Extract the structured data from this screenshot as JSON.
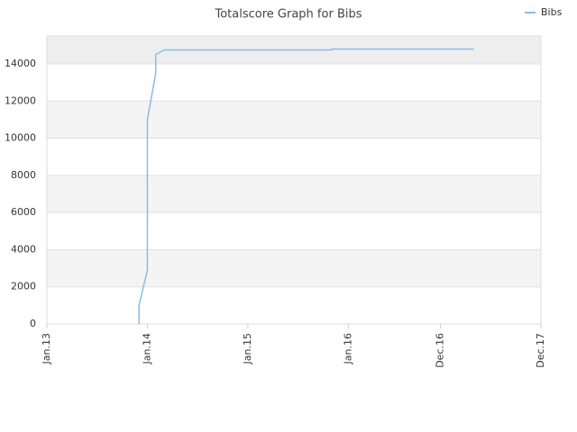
{
  "chart_data": {
    "type": "line",
    "title": "Totalscore Graph for Bibs",
    "x": [
      "2013-12",
      "2013-12",
      "2014-01",
      "2014-01",
      "2014-01",
      "2014-02",
      "2014-02",
      "2014-03",
      "2015-11",
      "2015-11",
      "2017-04"
    ],
    "series": [
      {
        "name": "Bibs",
        "color": "#88bbee",
        "values": [
          0,
          1000,
          2900,
          6000,
          11000,
          13500,
          14500,
          14750,
          14750,
          14800,
          14800
        ]
      }
    ],
    "xlim": [
      "2013-01",
      "2017-12"
    ],
    "xticks": [
      {
        "value": "2013-01",
        "label": "Jan.13"
      },
      {
        "value": "2014-01",
        "label": "Jan.14"
      },
      {
        "value": "2015-01",
        "label": "Jan.15"
      },
      {
        "value": "2016-01",
        "label": "Jan.16"
      },
      {
        "value": "2016-12",
        "label": "Dec.16"
      },
      {
        "value": "2017-12",
        "label": "Dec.17"
      }
    ],
    "ylim": [
      0,
      15500
    ],
    "yticks": [
      0,
      2000,
      4000,
      6000,
      8000,
      10000,
      12000,
      14000
    ],
    "grid": true,
    "legend": "top-right"
  }
}
